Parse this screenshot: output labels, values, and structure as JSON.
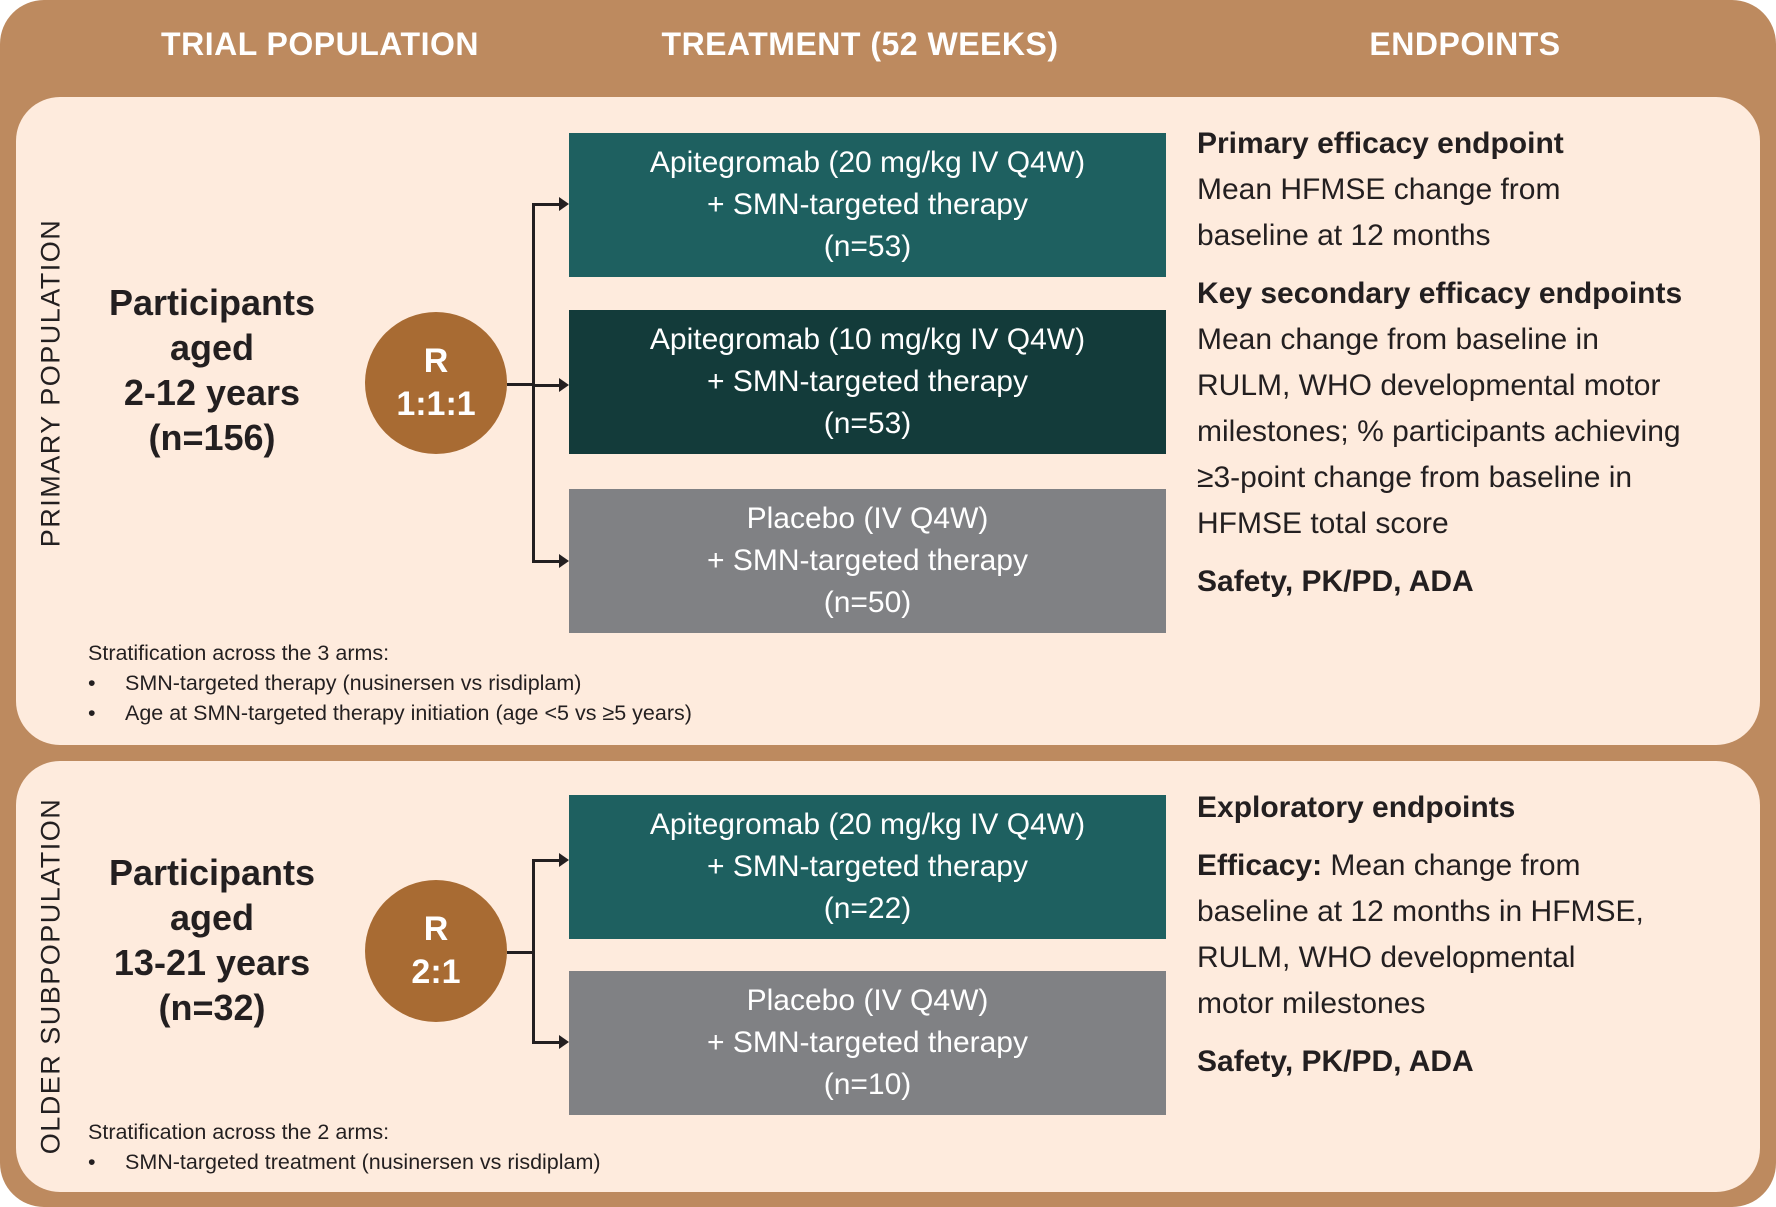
{
  "headers": {
    "population": "TRIAL POPULATION",
    "treatment": "TREATMENT (52 WEEKS)",
    "endpoints": "ENDPOINTS"
  },
  "colors": {
    "frame": "#BD8A5F",
    "panel": "#FEEBDD",
    "circle": "#A86B33",
    "teal": "#1E6060",
    "dark_teal": "#133B3A",
    "gray": "#808184"
  },
  "primary": {
    "side_label": "PRIMARY POPULATION",
    "participants": [
      "Participants",
      "aged",
      "2-12 years",
      "(n=156)"
    ],
    "randomization": {
      "r": "R",
      "ratio": "1:1:1"
    },
    "arms": [
      {
        "lines": [
          "Apitegromab (20 mg/kg IV Q4W)",
          "+ SMN-targeted therapy",
          "(n=53)"
        ]
      },
      {
        "lines": [
          "Apitegromab (10 mg/kg IV Q4W)",
          "+ SMN-targeted therapy",
          "(n=53)"
        ]
      },
      {
        "lines": [
          "Placebo (IV Q4W)",
          "+ SMN-targeted therapy",
          "(n=50)"
        ]
      }
    ],
    "stratification": {
      "title": "Stratification across the 3 arms:",
      "bullet": "•",
      "items": [
        "SMN-targeted therapy (nusinersen vs risdiplam)",
        "Age at SMN-targeted therapy initiation (age <5 vs ≥5 years)"
      ]
    },
    "endpoints": {
      "primary_heading": "Primary efficacy endpoint",
      "primary_lines": [
        "Mean HFMSE change from",
        "baseline at 12 months"
      ],
      "secondary_heading": "Key secondary efficacy endpoints",
      "secondary_lines": [
        "Mean change from baseline in",
        "RULM, WHO developmental motor",
        "milestones; % participants achieving",
        "≥3-point change from baseline in",
        "HFMSE total score"
      ],
      "safety": "Safety, PK/PD, ADA"
    }
  },
  "older": {
    "side_label": "OLDER SUBPOPULATION",
    "participants": [
      "Participants",
      "aged",
      "13-21 years",
      "(n=32)"
    ],
    "randomization": {
      "r": "R",
      "ratio": "2:1"
    },
    "arms": [
      {
        "lines": [
          "Apitegromab (20 mg/kg IV Q4W)",
          "+ SMN-targeted therapy",
          "(n=22)"
        ]
      },
      {
        "lines": [
          "Placebo (IV Q4W)",
          "+ SMN-targeted therapy",
          "(n=10)"
        ]
      }
    ],
    "stratification": {
      "title": "Stratification across the 2 arms:",
      "bullet": "•",
      "items": [
        "SMN-targeted treatment (nusinersen vs risdiplam)"
      ]
    },
    "endpoints": {
      "heading": "Exploratory endpoints",
      "efficacy_label": "Efficacy:",
      "efficacy_lines": [
        "Mean change from",
        "baseline at 12 months in HFMSE,",
        "RULM, WHO developmental",
        "motor milestones"
      ],
      "safety": "Safety, PK/PD, ADA"
    }
  }
}
